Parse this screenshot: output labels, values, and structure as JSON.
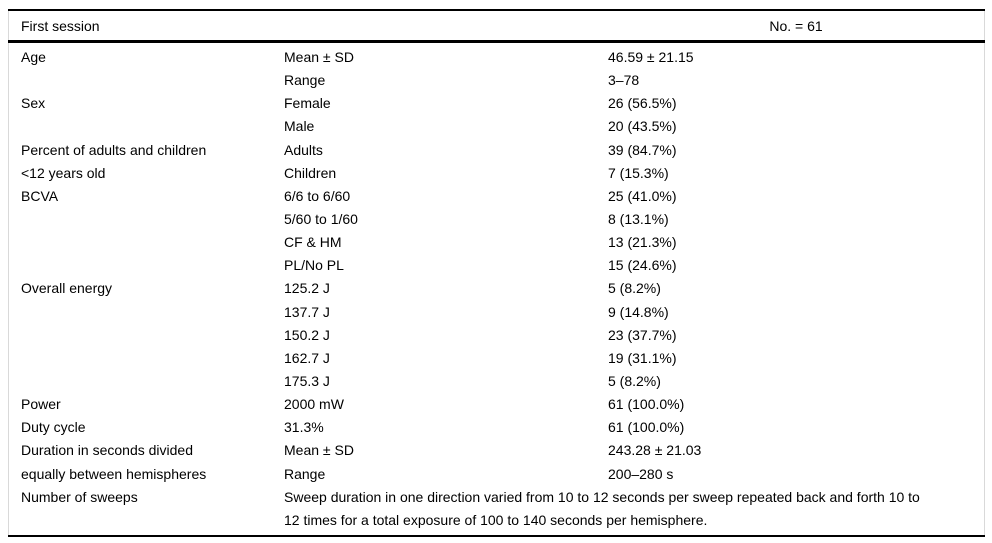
{
  "page": {
    "background": "#ffffff",
    "text_color": "#000000",
    "rule_color": "#000000",
    "side_border_color": "#d9d9d9"
  },
  "table": {
    "title": "First session",
    "sample_size": "No. = 61",
    "rows": [
      {
        "label": "Age",
        "sub": "Mean ± SD",
        "value": "46.59 ± 21.15"
      },
      {
        "label": "",
        "sub": "Range",
        "value": "3–78"
      },
      {
        "label": "Sex",
        "sub": "Female",
        "value": "26 (56.5%)"
      },
      {
        "label": "",
        "sub": "Male",
        "value": "20 (43.5%)"
      },
      {
        "label": "Percent of adults and children",
        "sub": "Adults",
        "value": "39 (84.7%)"
      },
      {
        "label": "<12 years old",
        "sub": "Children",
        "value": "7 (15.3%)"
      },
      {
        "label": "BCVA",
        "sub": "6/6 to 6/60",
        "value": "25 (41.0%)"
      },
      {
        "label": "",
        "sub": "5/60 to 1/60",
        "value": "8 (13.1%)"
      },
      {
        "label": "",
        "sub": "CF & HM",
        "value": "13 (21.3%)"
      },
      {
        "label": "",
        "sub": "PL/No PL",
        "value": "15 (24.6%)"
      },
      {
        "label": "Overall energy",
        "sub": "125.2 J",
        "value": "5 (8.2%)"
      },
      {
        "label": "",
        "sub": "137.7 J",
        "value": "9 (14.8%)"
      },
      {
        "label": "",
        "sub": "150.2 J",
        "value": "23 (37.7%)"
      },
      {
        "label": "",
        "sub": "162.7 J",
        "value": "19 (31.1%)"
      },
      {
        "label": "",
        "sub": "175.3 J",
        "value": "5 (8.2%)"
      },
      {
        "label": "Power",
        "sub": "2000 mW",
        "value": "61 (100.0%)"
      },
      {
        "label": "Duty cycle",
        "sub": "31.3%",
        "value": "61 (100.0%)"
      },
      {
        "label": "Duration in seconds divided",
        "sub": "Mean ± SD",
        "value": "243.28 ± 21.03"
      },
      {
        "label": "equally between hemispheres",
        "sub": "Range",
        "value": "200–280 s"
      }
    ],
    "note": {
      "label": "Number of sweeps",
      "text": "Sweep duration in one direction varied from 10 to 12 seconds per sweep repeated back and forth 10 to 12 times for a total exposure of 100 to 140 seconds per hemisphere."
    }
  }
}
